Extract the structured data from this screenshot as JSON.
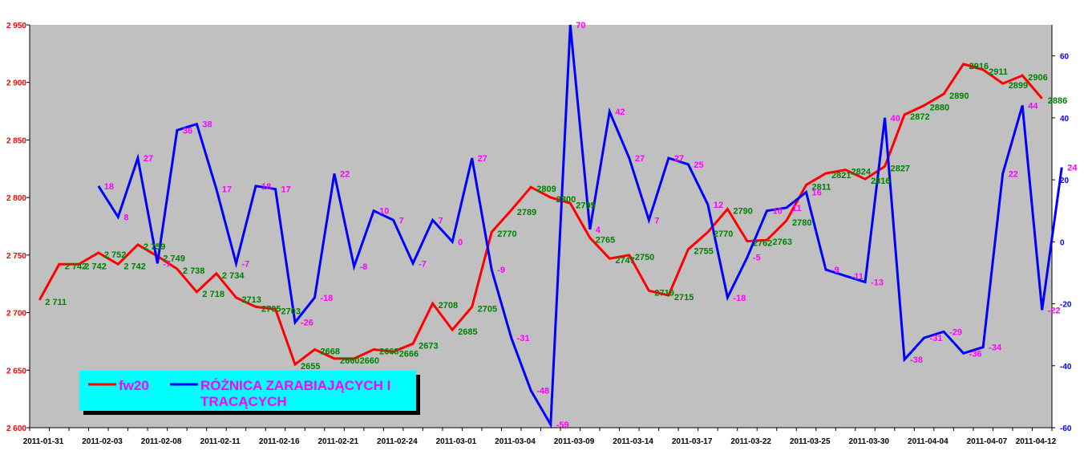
{
  "chart_data": {
    "type": "line",
    "dual_axis": true,
    "legend_placement": "bottom-left",
    "grid": false,
    "x_tick_labels": [
      "2011-01-31",
      "2011-02-03",
      "2011-02-08",
      "2011-02-11",
      "2011-02-16",
      "2011-02-21",
      "2011-02-24",
      "2011-03-01",
      "2011-03-04",
      "2011-03-09",
      "2011-03-14",
      "2011-03-17",
      "2011-03-22",
      "2011-03-25",
      "2011-03-30",
      "2011-04-04",
      "2011-04-07",
      "2011-04-12"
    ],
    "left_axis": {
      "ylim": [
        2600,
        2950
      ],
      "ticks": [
        2600,
        2650,
        2700,
        2750,
        2800,
        2850,
        2900,
        2950
      ],
      "tick_labels": [
        "2 600",
        "2 650",
        "2 700",
        "2 750",
        "2 800",
        "2 850",
        "2 900",
        "2 950"
      ]
    },
    "right_axis": {
      "ylim": [
        -60,
        70
      ],
      "ticks": [
        -60,
        -40,
        -20,
        0,
        20,
        40,
        60
      ],
      "tick_labels": [
        "-60",
        "-40",
        "-20",
        "0",
        "20",
        "40",
        "60"
      ]
    },
    "series": [
      {
        "name": "fw20",
        "axis": "left",
        "color": "#ff0000",
        "values": [
          2711,
          2742,
          2742,
          2752,
          2742,
          2759,
          2749,
          2738,
          2718,
          2734,
          2713,
          2705,
          2703,
          2655,
          2668,
          2660,
          2660,
          2668,
          2666,
          2673,
          2708,
          2685,
          2705,
          2770,
          2789,
          2809,
          2800,
          2795,
          2765,
          2747,
          2750,
          2719,
          2715,
          2755,
          2770,
          2790,
          2762,
          2763,
          2780,
          2811,
          2821,
          2824,
          2816,
          2827,
          2872,
          2880,
          2890,
          2916,
          2911,
          2899,
          2906,
          2886
        ],
        "labels": [
          "2 711",
          "2 742",
          "2 742",
          "2 752",
          "2 742",
          "2 759",
          "2 749",
          "2 738",
          "2 718",
          "2 734",
          "2713",
          "2705",
          "2703",
          "2655",
          "2668",
          "2660",
          "2660",
          "2668",
          "2666",
          "2673",
          "2708",
          "2685",
          "2705",
          "2770",
          "2789",
          "2809",
          "2800",
          "2795",
          "2765",
          "2747",
          "2750",
          "2719",
          "2715",
          "2755",
          "2770",
          "2790",
          "2762",
          "2763",
          "2780",
          "2811",
          "2821",
          "2824",
          "2816",
          "2827",
          "2872",
          "2880",
          "2890",
          "2916",
          "2911",
          "2899",
          "2906",
          "2886"
        ]
      },
      {
        "name": "RÓŻNICA ZARABIAJĄCYCH I TRACĄCYCH",
        "axis": "right",
        "color": "#0000ff",
        "label_color": "#ff00ff",
        "start_index": 3,
        "values": [
          18,
          8,
          27,
          -7,
          36,
          38,
          17,
          -7,
          18,
          17,
          -26,
          -18,
          22,
          -8,
          10,
          7,
          -7,
          7,
          0,
          27,
          -9,
          -31,
          -48,
          -59,
          70,
          4,
          42,
          27,
          7,
          27,
          25,
          12,
          -18,
          -5,
          10,
          11,
          16,
          -9,
          -11,
          -13,
          40,
          -38,
          -31,
          -29,
          -36,
          -34,
          22,
          44,
          -22,
          24
        ],
        "labels": [
          "18",
          "8",
          "27",
          "-7",
          "36",
          "38",
          "17",
          "-7",
          "18",
          "17",
          "-26",
          "-18",
          "22",
          "-8",
          "10",
          "7",
          "-7",
          "7",
          "0",
          "27",
          "-9",
          "-31",
          "-48",
          "-59",
          "70",
          "4",
          "42",
          "27",
          "7",
          "27",
          "25",
          "12",
          "-18",
          "-5",
          "10",
          "11",
          "16",
          "-9",
          "-11",
          "-13",
          "40",
          "-38",
          "-31",
          "-29",
          "-36",
          "-34",
          "22",
          "44",
          "-22",
          "24"
        ]
      }
    ]
  },
  "legend": {
    "series1_label": "fw20",
    "series2_line1": "RÓŻNICA ZARABIAJĄCYCH I",
    "series2_line2": "TRACĄCYCH",
    "background": "#00ffff",
    "text_color": "#ff00ff"
  },
  "plot_background": "#c0c0c0",
  "left_tick_color": "#ff0000",
  "right_tick_color": "#0000ff",
  "value_label_color": "#008000"
}
